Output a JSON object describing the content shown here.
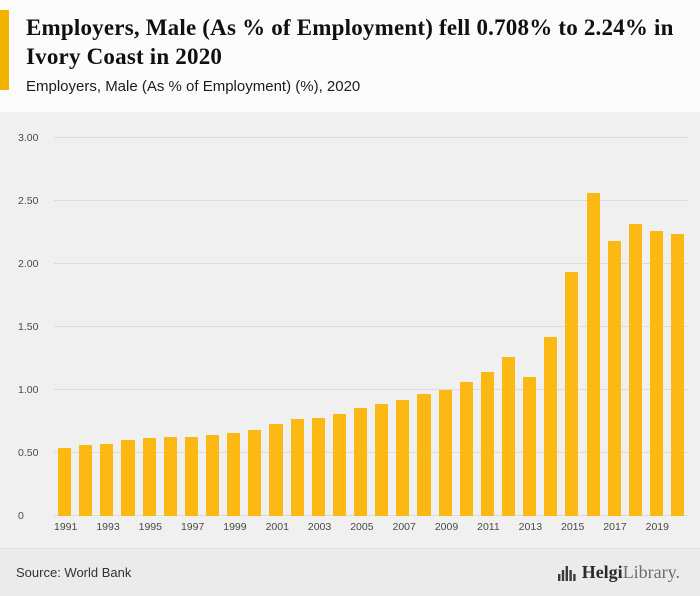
{
  "colors": {
    "accent": "#F2B200",
    "bar": "#FCB813",
    "chart_background": "#f0f0f0",
    "gridline": "#dcdcdc"
  },
  "header": {
    "title": "Employers, Male (As % of Employment) fell 0.708% to 2.24% in Ivory Coast in 2020",
    "subtitle": "Employers, Male (As % of Employment) (%), 2020"
  },
  "footer": {
    "source": "Source: World Bank",
    "logo": {
      "brand_bold": "Helgi",
      "brand_light": "Library."
    }
  },
  "chart_data": {
    "type": "bar",
    "title": "Employers, Male (As % of Employment) fell 0.708% to 2.24% in Ivory Coast in 2020",
    "subtitle": "Employers, Male (As % of Employment) (%), 2020",
    "xlabel": "",
    "ylabel": "",
    "grid": true,
    "legend": false,
    "bar_color": "#FCB813",
    "ylim": [
      0,
      3
    ],
    "yticks": [
      {
        "label": "0",
        "value": 0
      },
      {
        "label": "0.50",
        "value": 0.5
      },
      {
        "label": "1.00",
        "value": 1.0
      },
      {
        "label": "1.50",
        "value": 1.5
      },
      {
        "label": "2.00",
        "value": 2.0
      },
      {
        "label": "2.50",
        "value": 2.5
      },
      {
        "label": "3.00",
        "value": 3.0
      }
    ],
    "x": [
      1991,
      1992,
      1993,
      1994,
      1995,
      1996,
      1997,
      1998,
      1999,
      2000,
      2001,
      2002,
      2003,
      2004,
      2005,
      2006,
      2007,
      2008,
      2009,
      2010,
      2011,
      2012,
      2013,
      2014,
      2015,
      2016,
      2017,
      2018,
      2019,
      2020
    ],
    "values": [
      0.54,
      0.56,
      0.57,
      0.6,
      0.62,
      0.63,
      0.63,
      0.64,
      0.66,
      0.68,
      0.73,
      0.77,
      0.78,
      0.81,
      0.86,
      0.89,
      0.92,
      0.97,
      1.0,
      1.06,
      1.14,
      1.26,
      1.1,
      1.42,
      1.94,
      2.56,
      2.18,
      2.32,
      2.26,
      2.24
    ],
    "xtick_labels": [
      "1991",
      "1993",
      "1995",
      "1997",
      "1999",
      "2001",
      "2003",
      "2005",
      "2007",
      "2009",
      "2011",
      "2013",
      "2015",
      "2017",
      "2019"
    ]
  }
}
